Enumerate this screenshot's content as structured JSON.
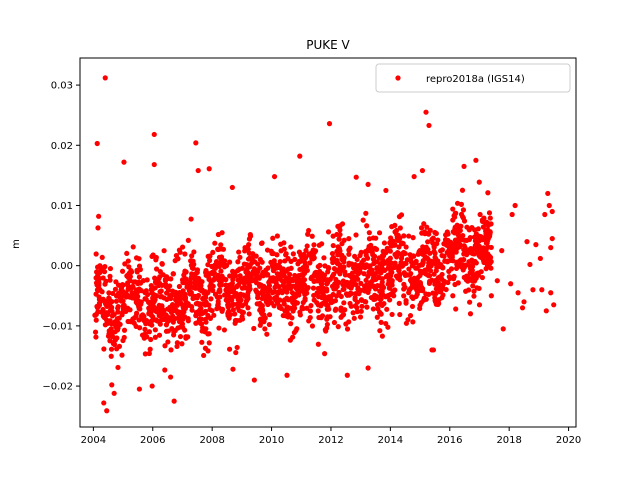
{
  "chart_data": {
    "type": "scatter",
    "title": "PUKE V",
    "xlabel": "",
    "ylabel": "m",
    "xlim": [
      2003.55,
      2020.25
    ],
    "ylim": [
      -0.0268,
      0.0345
    ],
    "x_ticks": [
      2004,
      2006,
      2008,
      2010,
      2012,
      2014,
      2016,
      2018,
      2020
    ],
    "x_tick_labels": [
      "2004",
      "2006",
      "2008",
      "2010",
      "2012",
      "2014",
      "2016",
      "2018",
      "2020"
    ],
    "y_ticks": [
      -0.02,
      -0.01,
      0.0,
      0.01,
      0.02,
      0.03
    ],
    "y_tick_labels": [
      "−0.02",
      "−0.01",
      "0.00",
      "0.01",
      "0.02",
      "0.03"
    ],
    "grid": false,
    "legend": {
      "position": "top-right"
    },
    "series": [
      {
        "name": "repro2018a (IGS14)",
        "color": "#ff0000",
        "marker": "circle",
        "points": [
          [
            2004.13,
            0.0203
          ],
          [
            2004.4,
            0.0312
          ],
          [
            2005.03,
            0.0172
          ],
          [
            2006.05,
            0.0218
          ],
          [
            2006.05,
            0.0168
          ],
          [
            2007.45,
            0.0204
          ],
          [
            2007.53,
            0.0158
          ],
          [
            2007.9,
            0.0161
          ],
          [
            2008.68,
            0.013
          ],
          [
            2010.1,
            0.0148
          ],
          [
            2010.95,
            0.0182
          ],
          [
            2011.95,
            0.0236
          ],
          [
            2012.85,
            0.0147
          ],
          [
            2013.25,
            0.0135
          ],
          [
            2013.85,
            0.0125
          ],
          [
            2014.8,
            0.0148
          ],
          [
            2015.2,
            0.0255
          ],
          [
            2015.3,
            0.0233
          ],
          [
            2015.08,
            0.0158
          ],
          [
            2016.48,
            0.0165
          ],
          [
            2016.88,
            0.0175
          ],
          [
            2004.35,
            -0.0228
          ],
          [
            2004.45,
            -0.0241
          ],
          [
            2004.7,
            -0.0212
          ],
          [
            2004.62,
            -0.0198
          ],
          [
            2005.55,
            -0.0205
          ],
          [
            2005.98,
            -0.02
          ],
          [
            2006.72,
            -0.0225
          ],
          [
            2006.6,
            -0.0185
          ],
          [
            2008.7,
            -0.0172
          ],
          [
            2009.42,
            -0.019
          ],
          [
            2010.52,
            -0.0182
          ],
          [
            2012.55,
            -0.0182
          ],
          [
            2013.25,
            -0.017
          ],
          [
            2015.45,
            -0.014
          ],
          [
            2015.4,
            -0.014
          ],
          [
            2017.8,
            -0.0105
          ],
          [
            2016.2,
            -0.0072
          ],
          [
            2017.0,
            -0.0065
          ],
          [
            2017.4,
            -0.005
          ],
          [
            2017.6,
            -0.0025
          ],
          [
            2018.05,
            -0.003
          ],
          [
            2018.3,
            -0.0045
          ],
          [
            2018.5,
            -0.006
          ],
          [
            2018.7,
            0.0002
          ],
          [
            2018.9,
            0.0035
          ],
          [
            2019.05,
            0.0012
          ],
          [
            2019.2,
            0.0085
          ],
          [
            2019.3,
            0.012
          ],
          [
            2019.35,
            0.01
          ],
          [
            2019.45,
            0.009
          ],
          [
            2019.4,
            -0.0045
          ],
          [
            2019.5,
            -0.0065
          ],
          [
            2019.1,
            -0.004
          ],
          [
            2018.8,
            -0.004
          ],
          [
            2018.45,
            -0.007
          ],
          [
            2018.6,
            0.004
          ],
          [
            2018.1,
            0.0085
          ],
          [
            2018.2,
            0.01
          ],
          [
            2017.75,
            0.0025
          ],
          [
            2019.25,
            -0.0075
          ],
          [
            2019.45,
            0.0045
          ],
          [
            2019.4,
            0.003
          ]
        ]
      }
    ],
    "clusters": [
      {
        "x_start": 2004.05,
        "x_end": 2005.9,
        "center": -0.0062,
        "spread": 0.0058,
        "count": 260,
        "seed": 11
      },
      {
        "x_start": 2005.9,
        "x_end": 2007.2,
        "center": -0.0055,
        "spread": 0.0057,
        "count": 210,
        "seed": 23
      },
      {
        "x_start": 2007.2,
        "x_end": 2008.8,
        "center": -0.0045,
        "spread": 0.0056,
        "count": 250,
        "seed": 37
      },
      {
        "x_start": 2008.8,
        "x_end": 2010.5,
        "center": -0.0035,
        "spread": 0.0055,
        "count": 260,
        "seed": 41
      },
      {
        "x_start": 2010.5,
        "x_end": 2012.2,
        "center": -0.003,
        "spread": 0.0056,
        "count": 260,
        "seed": 53
      },
      {
        "x_start": 2012.2,
        "x_end": 2013.8,
        "center": -0.002,
        "spread": 0.0055,
        "count": 250,
        "seed": 67
      },
      {
        "x_start": 2013.8,
        "x_end": 2015.8,
        "center": -0.0005,
        "spread": 0.0055,
        "count": 290,
        "seed": 71
      },
      {
        "x_start": 2015.8,
        "x_end": 2017.4,
        "center": 0.002,
        "spread": 0.0052,
        "count": 260,
        "seed": 89
      }
    ]
  }
}
